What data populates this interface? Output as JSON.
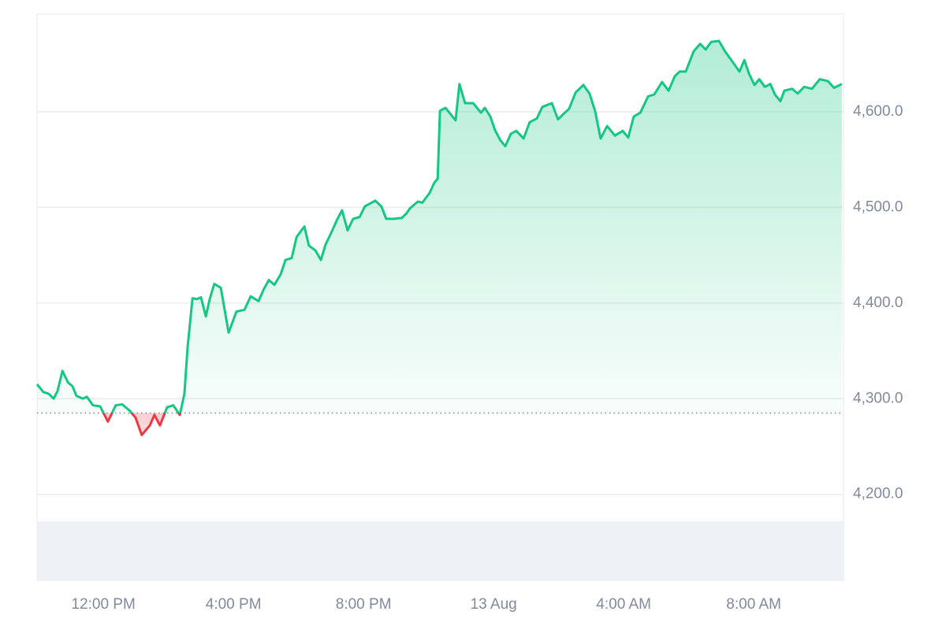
{
  "chart_data": {
    "type": "line",
    "x": [
      0,
      0.19,
      0.36,
      0.51,
      0.63,
      0.78,
      0.95,
      1.09,
      1.21,
      1.41,
      1.53,
      1.72,
      1.94,
      2.18,
      2.42,
      2.62,
      2.86,
      3.03,
      3.22,
      3.47,
      3.61,
      3.78,
      4.0,
      4.19,
      4.39,
      4.53,
      4.63,
      4.78,
      4.92,
      5.04,
      5.19,
      5.31,
      5.45,
      5.65,
      5.89,
      6.13,
      6.38,
      6.57,
      6.81,
      6.98,
      7.13,
      7.3,
      7.49,
      7.64,
      7.83,
      7.98,
      8.22,
      8.36,
      8.56,
      8.73,
      8.87,
      9.04,
      9.24,
      9.38,
      9.55,
      9.72,
      9.92,
      10.08,
      10.4,
      10.59,
      10.74,
      10.98,
      11.22,
      11.37,
      11.47,
      11.71,
      11.85,
      12.07,
      12.22,
      12.32,
      12.39,
      12.56,
      12.87,
      12.99,
      13.16,
      13.41,
      13.65,
      13.77,
      13.94,
      14.08,
      14.25,
      14.4,
      14.57,
      14.74,
      14.96,
      15.15,
      15.37,
      15.54,
      15.83,
      16.02,
      16.17,
      16.36,
      16.56,
      16.8,
      16.99,
      17.16,
      17.33,
      17.53,
      17.77,
      18.01,
      18.18,
      18.35,
      18.55,
      18.79,
      18.98,
      19.22,
      19.42,
      19.61,
      19.76,
      19.95,
      20.19,
      20.39,
      20.56,
      20.73,
      20.97,
      21.16,
      21.41,
      21.6,
      21.75,
      21.89,
      22.06,
      22.21,
      22.38,
      22.55,
      22.69,
      22.86,
      22.98,
      23.22,
      23.39,
      23.59,
      23.83,
      24.07,
      24.32,
      24.51,
      24.75
    ],
    "values": [
      4315,
      4307,
      4305,
      4300,
      4308,
      4329,
      4317,
      4313,
      4303,
      4300,
      4302,
      4293,
      4292,
      4276,
      4293,
      4294,
      4287,
      4280,
      4262,
      4272,
      4283,
      4272,
      4291,
      4293,
      4283,
      4305,
      4354,
      4405,
      4404,
      4406,
      4386,
      4404,
      4420,
      4416,
      4369,
      4391,
      4393,
      4407,
      4402,
      4415,
      4424,
      4419,
      4430,
      4445,
      4447,
      4469,
      4480,
      4460,
      4455,
      4445,
      4461,
      4473,
      4488,
      4497,
      4476,
      4488,
      4490,
      4501,
      4507,
      4501,
      4488,
      4488,
      4489,
      4494,
      4499,
      4506,
      4505,
      4515,
      4526,
      4530,
      4601,
      4604,
      4591,
      4629,
      4609,
      4609,
      4599,
      4604,
      4595,
      4581,
      4570,
      4564,
      4577,
      4580,
      4572,
      4589,
      4593,
      4605,
      4609,
      4592,
      4597,
      4603,
      4620,
      4628,
      4619,
      4601,
      4572,
      4585,
      4575,
      4580,
      4573,
      4595,
      4599,
      4616,
      4618,
      4631,
      4622,
      4637,
      4642,
      4642,
      4663,
      4671,
      4665,
      4673,
      4674,
      4663,
      4651,
      4642,
      4654,
      4640,
      4628,
      4634,
      4626,
      4629,
      4618,
      4611,
      4622,
      4624,
      4619,
      4626,
      4624,
      4634,
      4632,
      4625,
      4629
    ],
    "color": "#16c784",
    "color_below": "#ea3943",
    "baseline": 4285,
    "xlim": [
      0,
      24.8
    ],
    "xticks": [
      {
        "value": 2.04,
        "label": "12:00 PM"
      },
      {
        "value": 6.04,
        "label": "4:00 PM"
      },
      {
        "value": 10.04,
        "label": "8:00 PM"
      },
      {
        "value": 14.04,
        "label": "13 Aug"
      },
      {
        "value": 18.04,
        "label": "4:00 AM"
      },
      {
        "value": 22.04,
        "label": "8:00 AM"
      }
    ],
    "ylim": [
      4110,
      4702
    ],
    "yticks": [
      {
        "value": 4200,
        "label": "4,200.0"
      },
      {
        "value": 4300,
        "label": "4,300.0"
      },
      {
        "value": 4400,
        "label": "4,400.0"
      },
      {
        "value": 4500,
        "label": "4,500.0"
      },
      {
        "value": 4600,
        "label": "4,600.0"
      }
    ],
    "grid": true
  }
}
